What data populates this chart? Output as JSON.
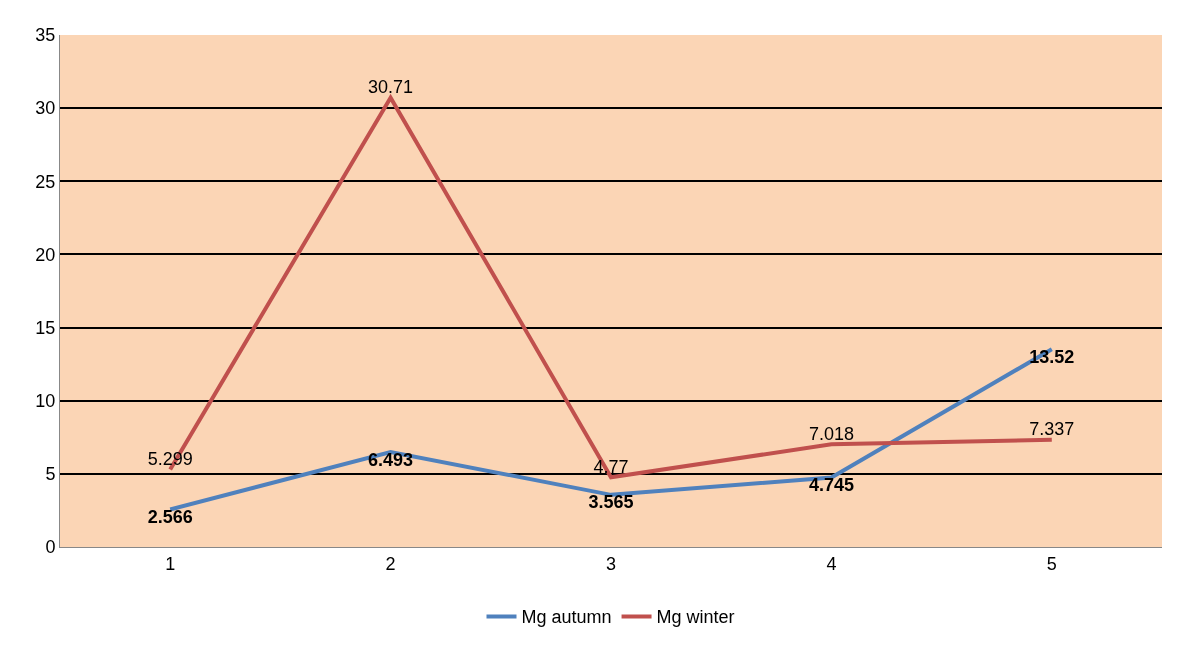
{
  "chart_data": {
    "type": "line",
    "categories": [
      "1",
      "2",
      "3",
      "4",
      "5"
    ],
    "series": [
      {
        "name": "Mg autumn",
        "color": "#4f81bd",
        "values": [
          2.566,
          6.493,
          3.565,
          4.745,
          13.52
        ]
      },
      {
        "name": "Mg winter",
        "color": "#c0504d",
        "values": [
          5.299,
          30.71,
          4.77,
          7.018,
          7.337
        ]
      }
    ],
    "ylim": [
      0,
      35
    ],
    "yticks": [
      0,
      5,
      10,
      15,
      20,
      25,
      30,
      35
    ],
    "grid": "y",
    "legend": "bottom",
    "data_labels": true,
    "marker": "none",
    "line_style": "solid"
  }
}
